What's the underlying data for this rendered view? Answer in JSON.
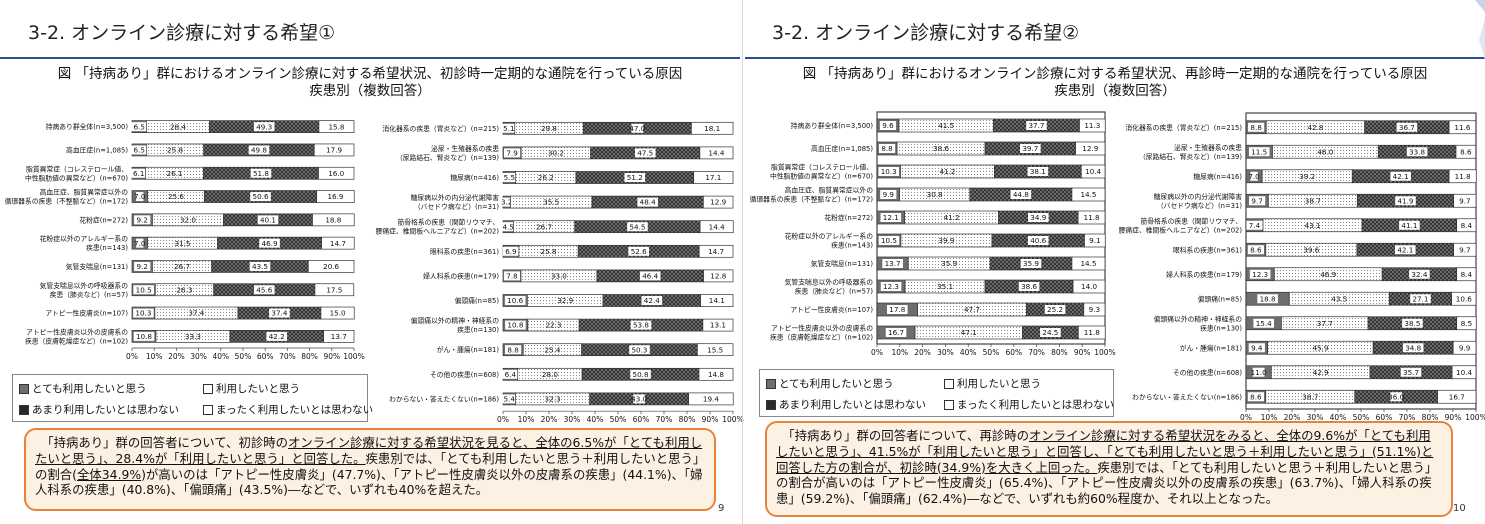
{
  "slides": [
    {
      "title": "3-2. オンライン診療に対する希望①",
      "subtitle_line1": "図 「持病あり」群におけるオンライン診療に対する希望状況、初診時一定期的な通院を行っている原因",
      "subtitle_line2": "疾患別（複数回答）",
      "summary": [
        {
          "t": "「持病あり」群の回答者について、初診時の"
        },
        {
          "t": "オンライン診療に対する希望状況を見ると、全体の6.5%が「とても利用したいと思う」、28.4%が「利用したいと思う」と回答した。",
          "u": true
        },
        {
          "t": "疾患別では、「とても利用したいと思う＋利用したいと思う」の割合("
        },
        {
          "t": "全体34.9%",
          "u": true
        },
        {
          "t": ")が高いのは「アトピー性皮膚炎」(47.7%)、「アトピー性皮膚炎以外の皮膚系の疾患」(44.1%)、「婦人科系の疾患」(40.8%)、「偏頭痛」(43.5%)―などで、いずれも40%を超えた。"
        }
      ],
      "page": "9"
    },
    {
      "title": "3-2. オンライン診療に対する希望②",
      "subtitle_line1": "図 「持病あり」群におけるオンライン診療に対する希望状況、再診時一定期的な通院を行っている原因",
      "subtitle_line2": "疾患別（複数回答）",
      "summary": [
        {
          "t": "「持病あり」群の回答者について、再診時の"
        },
        {
          "t": "オンライン診療に対する希望状況をみると、全体の9.6%が「とても利用したいと思う」、41.5%が「利用したいと思う」と回答し、「とても利用したいと思う＋利用したいと思う」(51.1%)と回答した方の割合が、初診時(34.9%)を大きく上回った。",
          "u": true
        },
        {
          "t": "疾患別では、「とても利用したいと思う＋利用したいと思う」の割合が高いのは「アトピー性皮膚炎」(65.4%)、「アトピー性皮膚炎以外の皮膚系の疾患」(63.7%)、「婦人科系の疾患」(59.2%)、「偏頭痛」(62.4%)―などで、いずれも約60%程度か、それ以上となった。"
        }
      ],
      "page": "10"
    }
  ],
  "legend": {
    "items": [
      "とても利用したいと思う",
      "利用したいと思う",
      "あまり利用したいとは思わない",
      "まったく利用したいとは思わない"
    ]
  },
  "colors": {
    "s1": "#6e6e6e",
    "s2": "#ffffff",
    "s3": "#5a5a5a",
    "s4": "#ffffff",
    "accent": "#e8843a",
    "rule": "#2b4f8e"
  },
  "chart_data": [
    {
      "type": "bar",
      "orientation": "horizontal-stacked-100",
      "series_names": [
        "とても利用したいと思う",
        "利用したいと思う",
        "あまり利用したいとは思わない",
        "まったく利用したいとは思わない"
      ],
      "ticks": [
        "0%",
        "10%",
        "20%",
        "30%",
        "40%",
        "50%",
        "60%",
        "70%",
        "80%",
        "90%",
        "100%"
      ],
      "xlim": [
        0,
        100
      ],
      "categories": [
        {
          "label": [
            "持病あり群全体(n=3,500)"
          ],
          "values": [
            6.5,
            28.4,
            49.3,
            15.8
          ]
        },
        {
          "label": [
            "高血圧症(n=1,085)"
          ],
          "values": [
            6.5,
            25.8,
            49.8,
            17.9
          ]
        },
        {
          "label": [
            "脂質異常症（コレステロール値、",
            "中性脂肪値の異常など）(n=670)"
          ],
          "values": [
            6.1,
            26.1,
            51.8,
            16.0
          ]
        },
        {
          "label": [
            "高血圧症、脂質異常症以外の",
            "循環器系の疾患（不整脈など）(n=172)"
          ],
          "values": [
            7.0,
            25.6,
            50.6,
            16.9
          ]
        },
        {
          "label": [
            "花粉症(n=272)"
          ],
          "values": [
            9.2,
            32.0,
            40.1,
            18.8
          ]
        },
        {
          "label": [
            "花粉症以外のアレルギー系の",
            "疾患(n=143)"
          ],
          "values": [
            7.0,
            31.5,
            46.9,
            14.7
          ]
        },
        {
          "label": [
            "気管支喘息(n=131)"
          ],
          "values": [
            9.2,
            26.7,
            43.5,
            20.6
          ]
        },
        {
          "label": [
            "気管支喘息以外の呼吸器系の",
            "疾患（肺炎など）(n=57)"
          ],
          "values": [
            10.5,
            26.3,
            45.6,
            17.5
          ]
        },
        {
          "label": [
            "アトピー性皮膚炎(n=107)"
          ],
          "values": [
            10.3,
            37.4,
            37.4,
            15.0
          ]
        },
        {
          "label": [
            "アトピー性皮膚炎以外の皮膚系の",
            "疾患（皮膚乾燥症など）(n=102)"
          ],
          "values": [
            10.8,
            33.3,
            42.2,
            13.7
          ]
        }
      ]
    },
    {
      "type": "bar",
      "orientation": "horizontal-stacked-100",
      "series_names": [
        "とても利用したいと思う",
        "利用したいと思う",
        "あまり利用したいとは思わない",
        "まったく利用したいとは思わない"
      ],
      "ticks": [
        "0%",
        "10%",
        "20%",
        "30%",
        "40%",
        "50%",
        "60%",
        "70%",
        "80%",
        "90%",
        "100%"
      ],
      "xlim": [
        0,
        100
      ],
      "categories": [
        {
          "label": [
            "消化器系の疾患（胃炎など）(n=215)"
          ],
          "values": [
            5.1,
            29.8,
            47.0,
            18.1
          ]
        },
        {
          "label": [
            "泌尿・生殖器系の疾患",
            "（尿路結石、腎炎など）(n=139)"
          ],
          "values": [
            7.9,
            30.2,
            47.5,
            14.4
          ]
        },
        {
          "label": [
            "糖尿病(n=416)"
          ],
          "values": [
            5.5,
            26.2,
            51.2,
            17.1
          ]
        },
        {
          "label": [
            "糖尿病以外の内分泌代謝障害",
            "（バセドウ病など）(n=31)"
          ],
          "values": [
            3.2,
            35.5,
            48.4,
            12.9
          ]
        },
        {
          "label": [
            "筋骨格系の疾患（関節リウマチ、",
            "腰痛症、椎間板ヘルニアなど）(n=202)"
          ],
          "values": [
            4.5,
            26.7,
            54.5,
            14.4
          ]
        },
        {
          "label": [
            "眼科系の疾患(n=361)"
          ],
          "values": [
            6.9,
            25.8,
            52.6,
            14.7
          ]
        },
        {
          "label": [
            "婦人科系の疾患(n=179)"
          ],
          "values": [
            7.8,
            33.0,
            46.4,
            12.8
          ]
        },
        {
          "label": [
            "偏頭痛(n=85)"
          ],
          "values": [
            10.6,
            32.9,
            42.4,
            14.1
          ]
        },
        {
          "label": [
            "偏頭痛以外の精神・神経系の",
            "疾患(n=130)"
          ],
          "values": [
            10.8,
            22.3,
            53.8,
            13.1
          ]
        },
        {
          "label": [
            "がん・腫瘍(n=181)"
          ],
          "values": [
            8.8,
            25.4,
            50.3,
            15.5
          ]
        },
        {
          "label": [
            "その他の疾患(n=608)"
          ],
          "values": [
            6.4,
            28.0,
            50.8,
            14.8
          ]
        },
        {
          "label": [
            "わからない・答えたくない(n=186)"
          ],
          "values": [
            5.4,
            32.3,
            43.0,
            19.4
          ]
        }
      ]
    },
    {
      "type": "bar",
      "orientation": "horizontal-stacked-100",
      "series_names": [
        "とても利用したいと思う",
        "利用したいと思う",
        "あまり利用したいとは思わない",
        "まったく利用したいとは思わない"
      ],
      "ticks": [
        "0%",
        "10%",
        "20%",
        "30%",
        "40%",
        "50%",
        "60%",
        "70%",
        "80%",
        "90%",
        "100%"
      ],
      "xlim": [
        0,
        100
      ],
      "categories": [
        {
          "label": [
            "持病あり群全体(n=3,500)"
          ],
          "values": [
            9.6,
            41.5,
            37.7,
            11.3
          ]
        },
        {
          "label": [
            "高血圧症(n=1,085)"
          ],
          "values": [
            8.8,
            38.6,
            39.7,
            12.9
          ]
        },
        {
          "label": [
            "脂質異常症（コレステロール値、",
            "中性脂肪値の異常など）(n=670)"
          ],
          "values": [
            10.3,
            41.2,
            38.1,
            10.4
          ]
        },
        {
          "label": [
            "高血圧症、脂質異常症以外の",
            "循環器系の疾患（不整脈など）(n=172)"
          ],
          "values": [
            9.9,
            30.8,
            44.8,
            14.5
          ]
        },
        {
          "label": [
            "花粉症(n=272)"
          ],
          "values": [
            12.1,
            41.2,
            34.9,
            11.8
          ]
        },
        {
          "label": [
            "花粉症以外のアレルギー系の",
            "疾患(n=143)"
          ],
          "values": [
            10.5,
            39.9,
            40.6,
            9.1
          ]
        },
        {
          "label": [
            "気管支喘息(n=131)"
          ],
          "values": [
            13.7,
            35.9,
            35.9,
            14.5
          ]
        },
        {
          "label": [
            "気管支喘息以外の呼吸器系の",
            "疾患（肺炎など）(n=57)"
          ],
          "values": [
            12.3,
            35.1,
            38.6,
            14.0
          ]
        },
        {
          "label": [
            "アトピー性皮膚炎(n=107)"
          ],
          "values": [
            17.8,
            47.7,
            25.2,
            9.3
          ]
        },
        {
          "label": [
            "アトピー性皮膚炎以外の皮膚系の",
            "疾患（皮膚乾燥症など）(n=102)"
          ],
          "values": [
            16.7,
            47.1,
            24.5,
            11.8
          ]
        }
      ]
    },
    {
      "type": "bar",
      "orientation": "horizontal-stacked-100",
      "series_names": [
        "とても利用したいと思う",
        "利用したいと思う",
        "あまり利用したいとは思わない",
        "まったく利用したいとは思わない"
      ],
      "ticks": [
        "0%",
        "10%",
        "20%",
        "30%",
        "40%",
        "50%",
        "60%",
        "70%",
        "80%",
        "90%",
        "100%"
      ],
      "xlim": [
        0,
        100
      ],
      "categories": [
        {
          "label": [
            "消化器系の疾患（胃炎など）(n=215)"
          ],
          "values": [
            8.8,
            42.8,
            36.7,
            11.6
          ]
        },
        {
          "label": [
            "泌尿・生殖器系の疾患",
            "（尿路結石、腎炎など）(n=139)"
          ],
          "values": [
            11.5,
            46.0,
            33.8,
            8.6
          ]
        },
        {
          "label": [
            "糖尿病(n=416)"
          ],
          "values": [
            7.0,
            39.2,
            42.1,
            11.8
          ]
        },
        {
          "label": [
            "糖尿病以外の内分泌代謝障害",
            "（バセドウ病など）(n=31)"
          ],
          "values": [
            9.7,
            38.7,
            41.9,
            9.7
          ]
        },
        {
          "label": [
            "筋骨格系の疾患（関節リウマチ、",
            "腰痛症、椎間板ヘルニアなど）(n=202)"
          ],
          "values": [
            7.4,
            43.1,
            41.1,
            8.4
          ]
        },
        {
          "label": [
            "眼科系の疾患(n=361)"
          ],
          "values": [
            8.6,
            39.6,
            42.1,
            9.7
          ]
        },
        {
          "label": [
            "婦人科系の疾患(n=179)"
          ],
          "values": [
            12.3,
            46.9,
            32.4,
            8.4
          ]
        },
        {
          "label": [
            "偏頭痛(n=85)"
          ],
          "values": [
            18.8,
            43.5,
            27.1,
            10.6
          ]
        },
        {
          "label": [
            "偏頭痛以外の精神・神経系の",
            "疾患(n=130)"
          ],
          "values": [
            15.4,
            37.7,
            38.5,
            8.5
          ]
        },
        {
          "label": [
            "がん・腫瘍(n=181)"
          ],
          "values": [
            9.4,
            45.9,
            34.8,
            9.9
          ]
        },
        {
          "label": [
            "その他の疾患(n=608)"
          ],
          "values": [
            11.0,
            42.9,
            35.7,
            10.4
          ]
        },
        {
          "label": [
            "わからない・答えたくない(n=186)"
          ],
          "values": [
            8.6,
            38.7,
            36.0,
            16.7
          ]
        }
      ]
    }
  ]
}
